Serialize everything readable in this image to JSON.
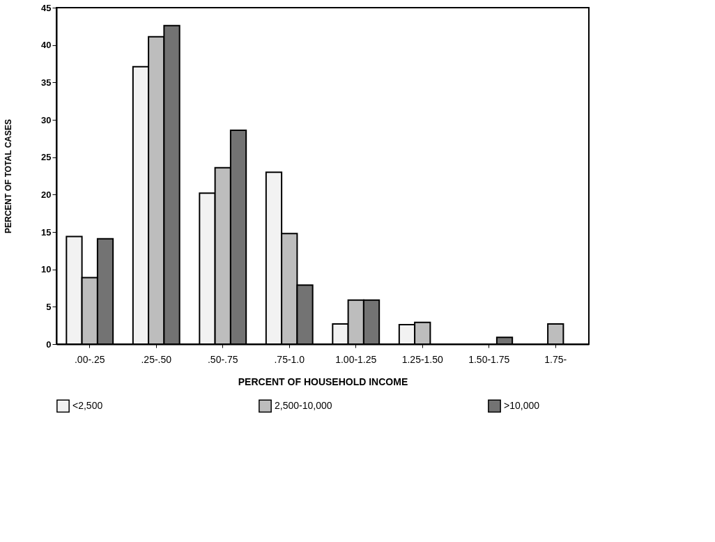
{
  "chart_data": {
    "type": "bar",
    "xlabel": "PERCENT OF HOUSEHOLD INCOME",
    "ylabel": "PERCENT OF TOTAL CASES",
    "categories": [
      ".00-.25",
      ".25-.50",
      ".50-.75",
      ".75-1.0",
      "1.00-1.25",
      "1.25-1.50",
      "1.50-1.75",
      "1.75-"
    ],
    "series": [
      {
        "name": "<2,500",
        "color": "#f2f2f2",
        "values": [
          14.4,
          37.1,
          20.2,
          23.0,
          2.7,
          2.6,
          null,
          null
        ]
      },
      {
        "name": "2,500-10,000",
        "color": "#bdbdbd",
        "values": [
          8.9,
          41.1,
          23.6,
          14.8,
          5.9,
          2.9,
          null,
          2.7
        ]
      },
      {
        "name": ">10,000",
        "color": "#737373",
        "values": [
          14.1,
          42.6,
          28.6,
          7.9,
          5.9,
          null,
          0.9,
          null
        ]
      }
    ],
    "ylim": [
      0,
      45
    ],
    "yticks": [
      0,
      5,
      10,
      15,
      20,
      25,
      30,
      35,
      40,
      45
    ],
    "grid": false,
    "legend": "bottom"
  }
}
